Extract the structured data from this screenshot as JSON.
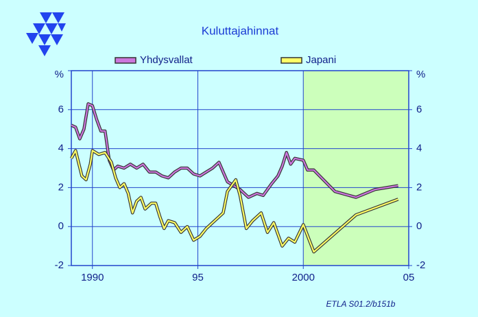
{
  "chart_data": {
    "type": "line",
    "title": "Kuluttajahinnat",
    "xlim": [
      1989,
      2005
    ],
    "xticks": [
      1990,
      {
        "value": 1995,
        "label": "95"
      },
      2000,
      {
        "value": 2005,
        "label": "05"
      }
    ],
    "ylim": [
      -2,
      8
    ],
    "yticks": [
      -2,
      0,
      2,
      4,
      6,
      {
        "value": 8,
        "label": "%"
      }
    ],
    "grid": true,
    "forecast_region": [
      2000,
      2005
    ],
    "forecast_color": "#ccffbb",
    "source": "ETLA S01.2/b151b",
    "series": [
      {
        "name": "Yhdysvallat",
        "color": "#cc77dd",
        "x": [
          1989.0,
          1989.2,
          1989.4,
          1989.6,
          1989.8,
          1990.0,
          1990.2,
          1990.4,
          1990.6,
          1990.8,
          1991.0,
          1991.2,
          1991.5,
          1991.8,
          1992.1,
          1992.4,
          1992.7,
          1993.0,
          1993.3,
          1993.6,
          1993.9,
          1994.2,
          1994.5,
          1994.8,
          1995.1,
          1995.4,
          1995.7,
          1996.0,
          1996.2,
          1996.4,
          1996.7,
          1997.0,
          1997.4,
          1997.8,
          1998.1,
          1998.5,
          1998.8,
          1999.0,
          1999.2,
          1999.4,
          1999.6,
          2000.0,
          2000.2,
          2000.5,
          2001.5,
          2002.5,
          2003.4,
          2004.5
        ],
        "values": [
          5.2,
          5.1,
          4.5,
          5.0,
          6.3,
          6.2,
          5.5,
          4.9,
          4.9,
          3.4,
          2.9,
          3.1,
          3.0,
          3.2,
          3.0,
          3.2,
          2.8,
          2.8,
          2.6,
          2.5,
          2.8,
          3.0,
          3.0,
          2.7,
          2.6,
          2.8,
          3.0,
          3.3,
          2.8,
          2.3,
          2.1,
          1.9,
          1.5,
          1.7,
          1.6,
          2.2,
          2.6,
          3.1,
          3.8,
          3.2,
          3.5,
          3.4,
          2.9,
          2.9,
          1.8,
          1.5,
          1.9,
          2.1
        ]
      },
      {
        "name": "Japani",
        "color": "#ffff66",
        "x": [
          1989.0,
          1989.2,
          1989.5,
          1989.7,
          1989.9,
          1990.0,
          1990.3,
          1990.6,
          1990.9,
          1991.1,
          1991.3,
          1991.5,
          1991.7,
          1991.9,
          1992.1,
          1992.3,
          1992.5,
          1992.8,
          1993.0,
          1993.2,
          1993.4,
          1993.6,
          1993.9,
          1994.2,
          1994.5,
          1994.8,
          1995.1,
          1995.4,
          1995.7,
          1996.0,
          1996.2,
          1996.4,
          1996.6,
          1996.8,
          1997.0,
          1997.3,
          1997.6,
          1998.0,
          1998.3,
          1998.6,
          1999.0,
          1999.3,
          1999.6,
          2000.0,
          2000.5,
          2002.5,
          2004.5
        ],
        "values": [
          3.5,
          3.9,
          2.6,
          2.4,
          3.2,
          3.9,
          3.7,
          3.8,
          3.3,
          2.5,
          2.0,
          2.2,
          1.7,
          0.7,
          1.3,
          1.5,
          0.9,
          1.2,
          1.2,
          0.5,
          -0.1,
          0.3,
          0.2,
          -0.3,
          0.0,
          -0.7,
          -0.5,
          -0.1,
          0.2,
          0.5,
          0.7,
          1.8,
          2.1,
          2.4,
          1.6,
          -0.1,
          0.3,
          0.7,
          -0.3,
          0.2,
          -1.0,
          -0.6,
          -0.8,
          0.1,
          -1.3,
          0.6,
          1.4
        ]
      }
    ]
  }
}
